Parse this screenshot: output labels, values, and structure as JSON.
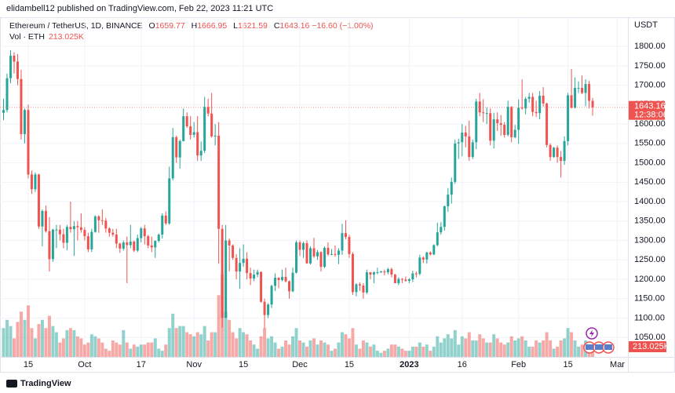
{
  "header": {
    "published": "elidambell12 published on TradingView.com, Feb 22, 2023 11:21 UTC",
    "symbol": "Ethereum / TetherUS, 1D, BINANCE",
    "legend_keys": [
      "O",
      "H",
      "L",
      "C"
    ],
    "change": "−16.60 (−1.00%)",
    "volume_caption": "Vol · ETH",
    "last_volume_label": "213.025K",
    "currency": "USDT",
    "countdown": "12:38:06",
    "brand": "TradingView"
  },
  "chart_data": {
    "type": "candlestick",
    "up_color": "#26a69a",
    "down_color": "#ef5350",
    "xlim": [
      -1,
      177
    ],
    "ylim": [
      1000,
      1875
    ],
    "xticks": [
      {
        "value": 7,
        "label": "15"
      },
      {
        "value": 23,
        "label": "Oct"
      },
      {
        "value": 39,
        "label": "17"
      },
      {
        "value": 54,
        "label": "Nov"
      },
      {
        "value": 68,
        "label": "15"
      },
      {
        "value": 84,
        "label": "Dec"
      },
      {
        "value": 98,
        "label": "15"
      },
      {
        "value": 115,
        "label": "2023"
      },
      {
        "value": 130,
        "label": "16"
      },
      {
        "value": 146,
        "label": "Feb"
      },
      {
        "value": 160,
        "label": "15"
      },
      {
        "value": 174,
        "label": "Mar"
      }
    ],
    "yticks": [
      {
        "value": 1050,
        "label": "1050.00"
      },
      {
        "value": 1100,
        "label": "1100.00"
      },
      {
        "value": 1150,
        "label": "1150.00"
      },
      {
        "value": 1200,
        "label": "1200.00"
      },
      {
        "value": 1250,
        "label": "1250.00"
      },
      {
        "value": 1300,
        "label": "1300.00"
      },
      {
        "value": 1350,
        "label": "1350.00"
      },
      {
        "value": 1400,
        "label": "1400.00"
      },
      {
        "value": 1450,
        "label": "1450.00"
      },
      {
        "value": 1500,
        "label": "1500.00"
      },
      {
        "value": 1550,
        "label": "1550.00"
      },
      {
        "value": 1600,
        "label": "1600.00"
      },
      {
        "value": 1650,
        "label": "1650.00"
      },
      {
        "value": 1700,
        "label": "1700.00"
      },
      {
        "value": 1750,
        "label": "1750.00"
      },
      {
        "value": 1800,
        "label": "1800.00"
      }
    ],
    "grid": true,
    "open": [
      1629,
      1636,
      1718,
      1776,
      1761,
      1716,
      1574,
      1636,
      1470,
      1432,
      1470,
      1336,
      1376,
      1324,
      1252,
      1328,
      1328,
      1316,
      1294,
      1335,
      1329,
      1337,
      1334,
      1327,
      1311,
      1277,
      1322,
      1362,
      1352,
      1351,
      1331,
      1320,
      1315,
      1292,
      1279,
      1295,
      1288,
      1297,
      1274,
      1306,
      1331,
      1311,
      1287,
      1282,
      1299,
      1315,
      1364,
      1344,
      1460,
      1566,
      1514,
      1556,
      1620,
      1594,
      1572,
      1579,
      1519,
      1531,
      1644,
      1627,
      1568,
      1570,
      1330,
      1101,
      1300,
      1287,
      1255,
      1220,
      1242,
      1253,
      1216,
      1202,
      1212,
      1219,
      1142,
      1108,
      1135,
      1183,
      1204,
      1198,
      1206,
      1195,
      1169,
      1217,
      1295,
      1276,
      1293,
      1241,
      1280,
      1259,
      1270,
      1232,
      1281,
      1264,
      1265,
      1263,
      1274,
      1319,
      1309,
      1265,
      1167,
      1187,
      1184,
      1166,
      1218,
      1212,
      1218,
      1218,
      1220,
      1218,
      1226,
      1212,
      1190,
      1201,
      1199,
      1196,
      1200,
      1215,
      1214,
      1256,
      1251,
      1269,
      1264,
      1288,
      1321,
      1335,
      1388,
      1418,
      1451,
      1550,
      1553,
      1578,
      1568,
      1515,
      1553,
      1658,
      1630,
      1628,
      1628,
      1557,
      1612,
      1602,
      1598,
      1572,
      1644,
      1566,
      1585,
      1642,
      1640,
      1665,
      1670,
      1631,
      1628,
      1673,
      1653,
      1546,
      1515,
      1539,
      1515,
      1505,
      1556,
      1674,
      1642,
      1693,
      1693,
      1680,
      1703,
      1659.77
    ],
    "high": [
      1665,
      1730,
      1790,
      1785,
      1780,
      1740,
      1640,
      1650,
      1480,
      1475,
      1472,
      1380,
      1390,
      1360,
      1330,
      1340,
      1340,
      1330,
      1340,
      1400,
      1350,
      1350,
      1370,
      1334,
      1320,
      1330,
      1365,
      1365,
      1380,
      1358,
      1334,
      1330,
      1330,
      1294,
      1300,
      1310,
      1340,
      1300,
      1315,
      1335,
      1340,
      1315,
      1310,
      1300,
      1318,
      1370,
      1375,
      1490,
      1590,
      1570,
      1560,
      1640,
      1630,
      1620,
      1605,
      1620,
      1555,
      1670,
      1665,
      1680,
      1600,
      1605,
      1340,
      1340,
      1305,
      1290,
      1265,
      1280,
      1290,
      1270,
      1230,
      1225,
      1225,
      1220,
      1150,
      1138,
      1186,
      1215,
      1205,
      1225,
      1230,
      1197,
      1230,
      1300,
      1300,
      1297,
      1300,
      1285,
      1307,
      1275,
      1272,
      1285,
      1295,
      1278,
      1287,
      1280,
      1343,
      1352,
      1315,
      1270,
      1190,
      1192,
      1190,
      1225,
      1219,
      1220,
      1230,
      1222,
      1225,
      1230,
      1230,
      1214,
      1205,
      1203,
      1207,
      1203,
      1222,
      1220,
      1263,
      1259,
      1271,
      1272,
      1290,
      1346,
      1347,
      1390,
      1435,
      1462,
      1560,
      1562,
      1600,
      1595,
      1609,
      1560,
      1665,
      1680,
      1664,
      1643,
      1640,
      1629,
      1630,
      1623,
      1605,
      1660,
      1646,
      1598,
      1663,
      1715,
      1670,
      1680,
      1680,
      1660,
      1685,
      1695,
      1655,
      1550,
      1541,
      1545,
      1530,
      1568,
      1680,
      1742,
      1720,
      1710,
      1725,
      1715,
      1711,
      1666.95
    ],
    "low": [
      1610,
      1630,
      1705,
      1730,
      1700,
      1560,
      1550,
      1460,
      1420,
      1425,
      1330,
      1285,
      1320,
      1220,
      1245,
      1280,
      1300,
      1280,
      1275,
      1320,
      1260,
      1300,
      1320,
      1300,
      1270,
      1270,
      1320,
      1320,
      1340,
      1320,
      1310,
      1310,
      1280,
      1268,
      1274,
      1190,
      1280,
      1270,
      1270,
      1295,
      1290,
      1280,
      1270,
      1255,
      1295,
      1305,
      1340,
      1340,
      1455,
      1500,
      1485,
      1555,
      1590,
      1560,
      1565,
      1505,
      1505,
      1525,
      1620,
      1565,
      1545,
      1240,
      1075,
      1100,
      1220,
      1250,
      1200,
      1175,
      1232,
      1200,
      1185,
      1195,
      1205,
      1140,
      1073,
      1100,
      1126,
      1170,
      1177,
      1195,
      1192,
      1150,
      1167,
      1215,
      1260,
      1255,
      1240,
      1238,
      1255,
      1250,
      1220,
      1229,
      1260,
      1262,
      1258,
      1239,
      1263,
      1303,
      1255,
      1160,
      1156,
      1170,
      1150,
      1162,
      1200,
      1190,
      1213,
      1216,
      1210,
      1213,
      1205,
      1190,
      1185,
      1190,
      1194,
      1190,
      1193,
      1205,
      1210,
      1242,
      1240,
      1261,
      1262,
      1285,
      1315,
      1325,
      1374,
      1395,
      1446,
      1510,
      1517,
      1540,
      1505,
      1510,
      1535,
      1620,
      1605,
      1600,
      1545,
      1537,
      1582,
      1570,
      1565,
      1568,
      1553,
      1563,
      1549,
      1637,
      1625,
      1655,
      1620,
      1618,
      1612,
      1645,
      1540,
      1505,
      1513,
      1500,
      1462,
      1495,
      1545,
      1640,
      1640,
      1680,
      1677,
      1646,
      1640,
      1621.59
    ],
    "close": [
      1636,
      1718,
      1776,
      1761,
      1716,
      1574,
      1636,
      1470,
      1432,
      1470,
      1336,
      1376,
      1324,
      1252,
      1328,
      1328,
      1316,
      1294,
      1335,
      1329,
      1337,
      1334,
      1327,
      1311,
      1277,
      1322,
      1362,
      1352,
      1351,
      1331,
      1320,
      1315,
      1292,
      1279,
      1295,
      1288,
      1297,
      1274,
      1306,
      1331,
      1311,
      1287,
      1282,
      1299,
      1315,
      1364,
      1344,
      1460,
      1566,
      1514,
      1556,
      1620,
      1594,
      1572,
      1579,
      1519,
      1531,
      1644,
      1627,
      1568,
      1570,
      1330,
      1101,
      1300,
      1287,
      1255,
      1220,
      1242,
      1253,
      1216,
      1202,
      1212,
      1219,
      1142,
      1108,
      1135,
      1183,
      1204,
      1198,
      1206,
      1195,
      1169,
      1217,
      1295,
      1276,
      1293,
      1241,
      1280,
      1259,
      1270,
      1232,
      1281,
      1264,
      1265,
      1263,
      1274,
      1319,
      1309,
      1265,
      1167,
      1187,
      1184,
      1166,
      1218,
      1212,
      1218,
      1218,
      1220,
      1218,
      1226,
      1212,
      1190,
      1201,
      1199,
      1196,
      1200,
      1215,
      1214,
      1256,
      1251,
      1269,
      1264,
      1288,
      1321,
      1335,
      1388,
      1418,
      1451,
      1550,
      1553,
      1578,
      1568,
      1515,
      1553,
      1658,
      1630,
      1628,
      1628,
      1557,
      1612,
      1602,
      1598,
      1572,
      1644,
      1566,
      1585,
      1642,
      1640,
      1665,
      1670,
      1631,
      1628,
      1673,
      1653,
      1546,
      1515,
      1539,
      1515,
      1505,
      1556,
      1674,
      1642,
      1693,
      1693,
      1680,
      1703,
      1659.77,
      1643.16
    ],
    "volume": [
      700000,
      900000,
      750000,
      450000,
      850000,
      1100000,
      900000,
      1250000,
      700000,
      450000,
      800000,
      900000,
      700000,
      1000000,
      750000,
      600000,
      350000,
      450000,
      650000,
      700000,
      650000,
      500000,
      450000,
      300000,
      350000,
      550000,
      500000,
      450000,
      350000,
      200000,
      150000,
      400000,
      350000,
      300000,
      650000,
      350000,
      200000,
      300000,
      250000,
      300000,
      300000,
      350000,
      350000,
      450000,
      200000,
      150000,
      300000,
      700000,
      1050000,
      700000,
      750000,
      750000,
      600000,
      550000,
      500000,
      600000,
      550000,
      750000,
      400000,
      600000,
      600000,
      1500000,
      2000000,
      1100000,
      900000,
      600000,
      450000,
      700000,
      600000,
      550000,
      400000,
      300000,
      200000,
      500000,
      700000,
      450000,
      500000,
      350000,
      200000,
      250000,
      400000,
      300000,
      500000,
      700000,
      400000,
      350000,
      250000,
      400000,
      450000,
      300000,
      400000,
      350000,
      300000,
      150000,
      200000,
      350000,
      600000,
      550000,
      450000,
      700000,
      300000,
      200000,
      400000,
      350000,
      250000,
      300000,
      150000,
      100000,
      150000,
      200000,
      300000,
      300000,
      250000,
      200000,
      150000,
      150000,
      250000,
      250000,
      350000,
      250000,
      300000,
      150000,
      250000,
      500000,
      350000,
      450000,
      550000,
      450000,
      650000,
      300000,
      500000,
      450000,
      600000,
      400000,
      400000,
      550000,
      450000,
      350000,
      350000,
      550000,
      450000,
      350000,
      300000,
      350000,
      500000,
      400000,
      450000,
      500000,
      400000,
      250000,
      250000,
      400000,
      350000,
      400000,
      600000,
      400000,
      200000,
      250000,
      400000,
      450000,
      700000,
      600000,
      400000,
      250000,
      300000,
      400000,
      350000,
      213025
    ]
  }
}
